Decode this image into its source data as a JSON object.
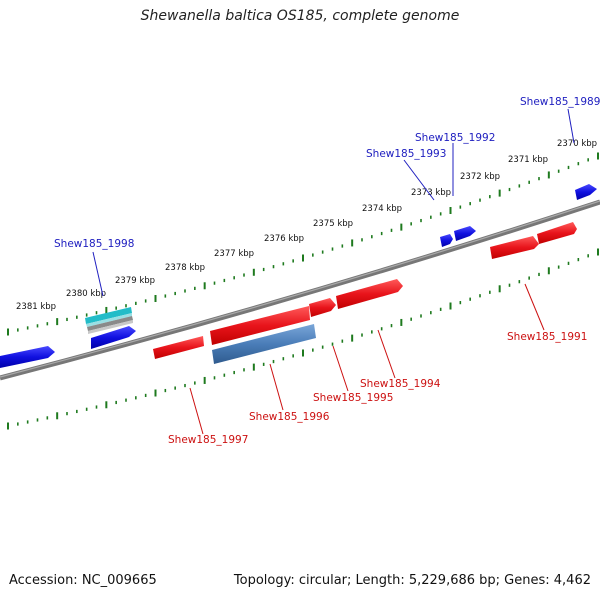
{
  "title": "Shewanella baltica OS185, complete genome",
  "footer": {
    "accession": "Accession: NC_009665",
    "summary": "Topology: circular; Length: 5,229,686 bp; Genes: 4,462"
  },
  "colors": {
    "forward_gene": "#e8141b",
    "reverse_gene": "#1010e0",
    "backbone": "#777777",
    "tick": "#1e7a1e",
    "label_reverse": "#2020c0",
    "label_forward": "#cc1111",
    "rna_gene": "#22bcc8",
    "pseudo_gene": "#4a7db8"
  },
  "scale_labels": [
    "2381 kbp",
    "2380 kbp",
    "2379 kbp",
    "2378 kbp",
    "2377 kbp",
    "2376 kbp",
    "2375 kbp",
    "2374 kbp",
    "2373 kbp",
    "2372 kbp",
    "2371 kbp",
    "2370 kbp"
  ],
  "gene_labels": [
    {
      "text": "Shew185_1989",
      "strand": "reverse"
    },
    {
      "text": "Shew185_1992",
      "strand": "reverse"
    },
    {
      "text": "Shew185_1993",
      "strand": "reverse"
    },
    {
      "text": "Shew185_1998",
      "strand": "reverse"
    },
    {
      "text": "Shew185_1991",
      "strand": "forward"
    },
    {
      "text": "Shew185_1994",
      "strand": "forward"
    },
    {
      "text": "Shew185_1995",
      "strand": "forward"
    },
    {
      "text": "Shew185_1996",
      "strand": "forward"
    },
    {
      "text": "Shew185_1997",
      "strand": "forward"
    }
  ]
}
